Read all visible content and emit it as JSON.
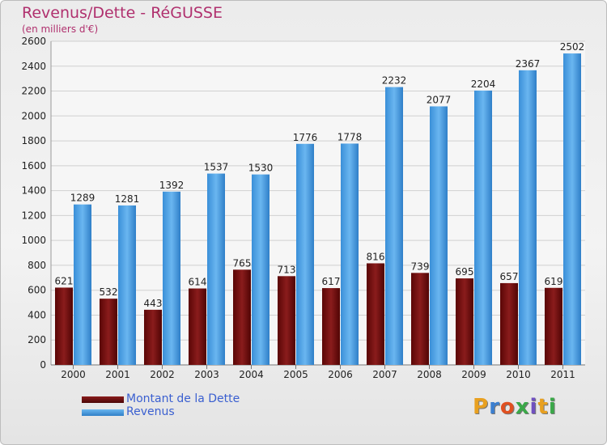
{
  "title": "Revenus/Dette - RéGUSSE",
  "subtitle": "(en milliers d'€)",
  "brand": "Proxiti",
  "chart_data": {
    "type": "bar",
    "title": "Revenus/Dette - RéGUSSE",
    "ylabel": "(en milliers d'€)",
    "xlabel": "",
    "ylim": [
      0,
      2600
    ],
    "yticks": [
      0,
      200,
      400,
      600,
      800,
      1000,
      1200,
      1400,
      1600,
      1800,
      2000,
      2200,
      2400,
      2600
    ],
    "grid": true,
    "legend_position": "bottom-left",
    "categories": [
      "2000",
      "2001",
      "2002",
      "2003",
      "2004",
      "2005",
      "2006",
      "2007",
      "2008",
      "2009",
      "2010",
      "2011"
    ],
    "series": [
      {
        "name": "Montant de la Dette",
        "color": "#6e0e0e",
        "values": [
          621,
          532,
          443,
          614,
          765,
          713,
          617,
          816,
          739,
          695,
          657,
          619
        ]
      },
      {
        "name": "Revenus",
        "color": "#4a9fe0",
        "values": [
          1289,
          1281,
          1392,
          1537,
          1530,
          1776,
          1778,
          2232,
          2077,
          2204,
          2367,
          2502
        ]
      }
    ]
  },
  "colors": {
    "title": "#b0306e",
    "legend_text": "#3a5fd0",
    "brand_letters": [
      "#e8a020",
      "#3b7fd0",
      "#e05020",
      "#3aa848",
      "#7050c0",
      "#e8a020",
      "#3aa848"
    ]
  }
}
